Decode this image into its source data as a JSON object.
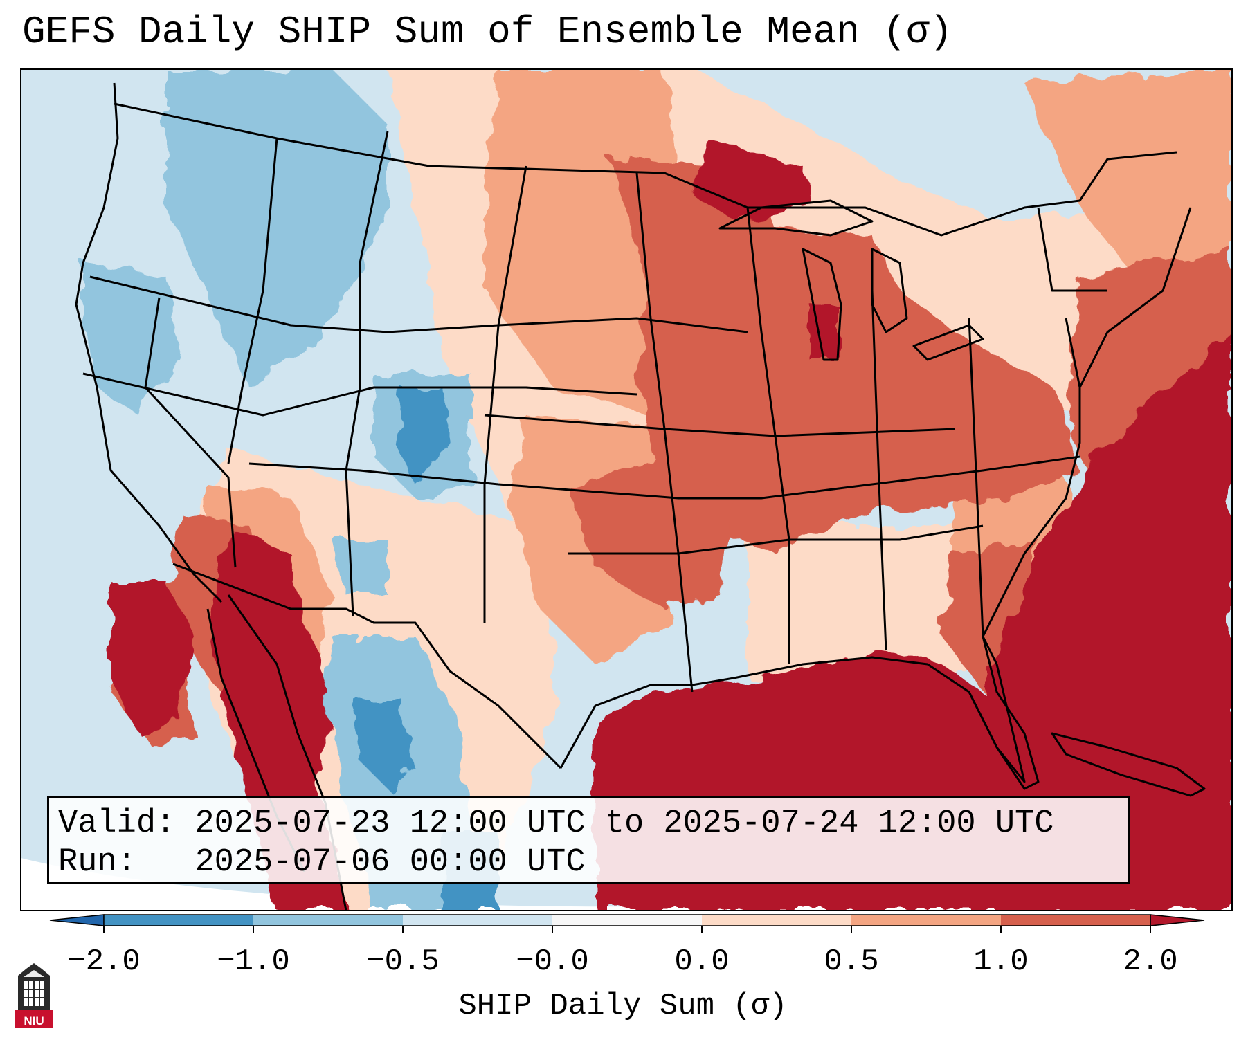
{
  "title": "GEFS Daily SHIP Sum of Ensemble Mean (σ)",
  "info": {
    "valid_label": "Valid:",
    "valid_value": "2025-07-23 12:00 UTC to 2025-07-24 12:00 UTC",
    "run_label": "Run:",
    "run_value": "2025-07-06 00:00 UTC"
  },
  "colorbar": {
    "title": "SHIP Daily Sum (σ)",
    "ticks": [
      "−2.0",
      "−1.0",
      "−0.5",
      "−0.0",
      "0.0",
      "0.5",
      "1.0",
      "2.0"
    ],
    "colors": {
      "below": "#2166ac",
      "bin1": "#4393c3",
      "bin2": "#92c5de",
      "bin3": "#d1e5f0",
      "bin4": "#f7f7f7",
      "bin5": "#fddbc7",
      "bin6": "#f4a582",
      "bin7": "#d6604d",
      "above": "#b2182b"
    }
  },
  "logo": {
    "text": "NIU",
    "icon": "university-tower-icon"
  }
}
